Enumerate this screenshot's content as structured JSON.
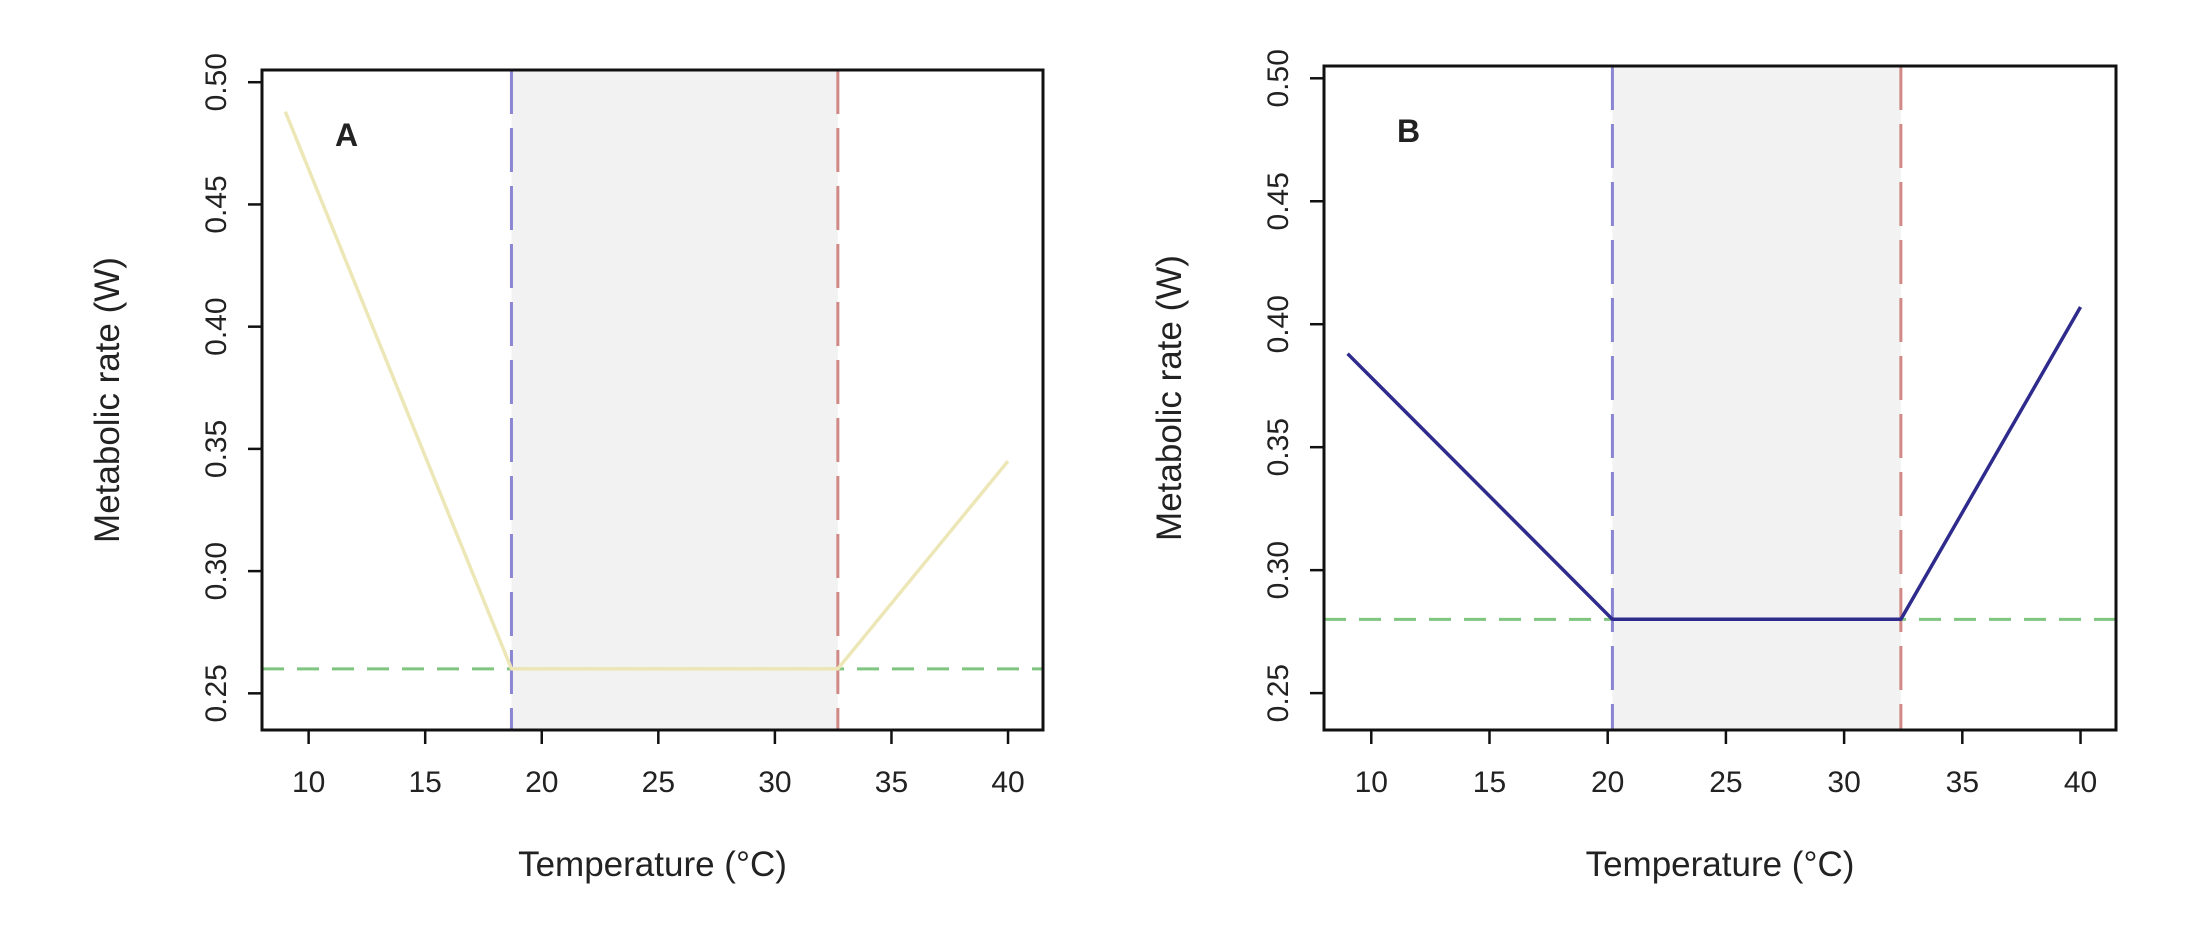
{
  "figure": {
    "panels_shared": {
      "xlabel": "Temperature (°C)",
      "ylabel": "Metabolic rate (W)",
      "xticks": [
        "10",
        "15",
        "20",
        "25",
        "30",
        "35",
        "40"
      ],
      "yticks": [
        "0.25",
        "0.30",
        "0.35",
        "0.40",
        "0.45",
        "0.50"
      ]
    }
  },
  "chart_data": [
    {
      "type": "line",
      "panel_label": "A",
      "xlabel": "Temperature (°C)",
      "ylabel": "Metabolic rate (W)",
      "xlim": [
        8,
        41.5
      ],
      "ylim": [
        0.235,
        0.505
      ],
      "xticks": [
        10,
        15,
        20,
        25,
        30,
        35,
        40
      ],
      "yticks": [
        0.25,
        0.3,
        0.35,
        0.4,
        0.45,
        0.5
      ],
      "series": [
        {
          "color": "#ede7b8",
          "x": [
            9,
            18.7,
            32.7,
            40
          ],
          "y": [
            0.488,
            0.26,
            0.26,
            0.345
          ]
        }
      ],
      "vlines": [
        {
          "x": 18.7,
          "color": "#8a86d2",
          "style": "dashed"
        },
        {
          "x": 32.7,
          "color": "#cf8a86",
          "style": "dashed"
        }
      ],
      "hline": {
        "y": 0.26,
        "color": "#7fc47f",
        "style": "dashed"
      },
      "shaded_region": {
        "x": [
          18.7,
          32.7
        ],
        "color": "#f2f2f2"
      },
      "grid": false
    },
    {
      "type": "line",
      "panel_label": "B",
      "xlabel": "Temperature (°C)",
      "ylabel": "Metabolic rate (W)",
      "xlim": [
        8,
        41.5
      ],
      "ylim": [
        0.235,
        0.505
      ],
      "xticks": [
        10,
        15,
        20,
        25,
        30,
        35,
        40
      ],
      "yticks": [
        0.25,
        0.3,
        0.35,
        0.4,
        0.45,
        0.5
      ],
      "series": [
        {
          "color": "#2e2b8c",
          "x": [
            9,
            20.2,
            32.4,
            40
          ],
          "y": [
            0.388,
            0.28,
            0.28,
            0.407
          ]
        }
      ],
      "vlines": [
        {
          "x": 20.2,
          "color": "#8a86d2",
          "style": "dashed"
        },
        {
          "x": 32.4,
          "color": "#cf8a86",
          "style": "dashed"
        }
      ],
      "hline": {
        "y": 0.28,
        "color": "#7fc47f",
        "style": "dashed"
      },
      "shaded_region": {
        "x": [
          20.2,
          32.4
        ],
        "color": "#f2f2f2"
      },
      "grid": false
    }
  ]
}
